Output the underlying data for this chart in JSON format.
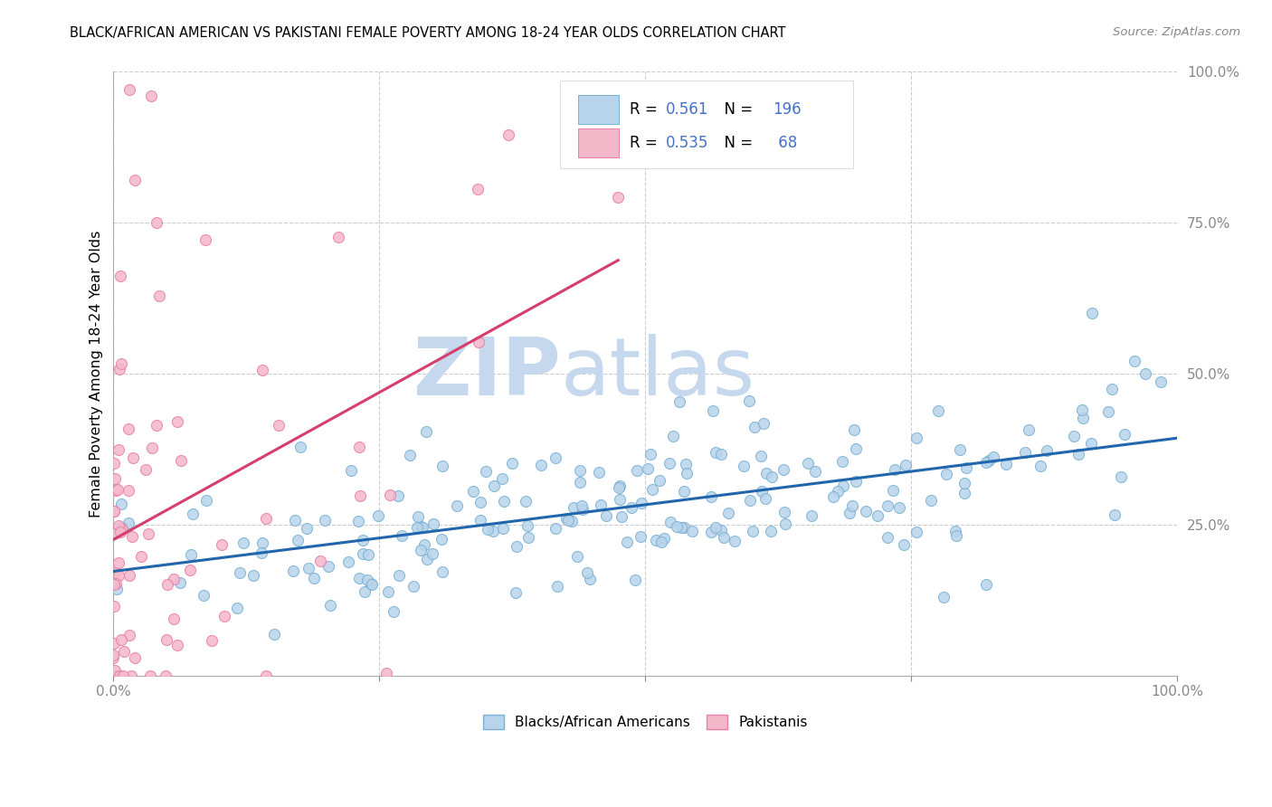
{
  "title": "BLACK/AFRICAN AMERICAN VS PAKISTANI FEMALE POVERTY AMONG 18-24 YEAR OLDS CORRELATION CHART",
  "source": "Source: ZipAtlas.com",
  "ylabel": "Female Poverty Among 18-24 Year Olds",
  "blue_R": 0.561,
  "blue_N": 196,
  "pink_R": 0.535,
  "pink_N": 68,
  "blue_marker_face": "#b8d4ea",
  "blue_marker_edge": "#7ab0d4",
  "pink_marker_face": "#f5b8cb",
  "pink_marker_edge": "#e87fa8",
  "blue_line_color": "#2166ac",
  "pink_line_color": "#d63e6e",
  "pink_dash_color": "#e8a0b8",
  "watermark_zip_color": "#c5d8ed",
  "watermark_atlas_color": "#c5d8ed",
  "legend_blue_patch_face": "#b8d4ea",
  "legend_blue_patch_edge": "#7ab0d4",
  "legend_pink_patch_face": "#f5b8cb",
  "legend_pink_patch_edge": "#e87fa8",
  "R_N_color": "#4472c4",
  "legend_blue_label": "Blacks/African Americans",
  "legend_pink_label": "Pakistanis",
  "figsize": [
    14.06,
    8.92
  ],
  "dpi": 100
}
